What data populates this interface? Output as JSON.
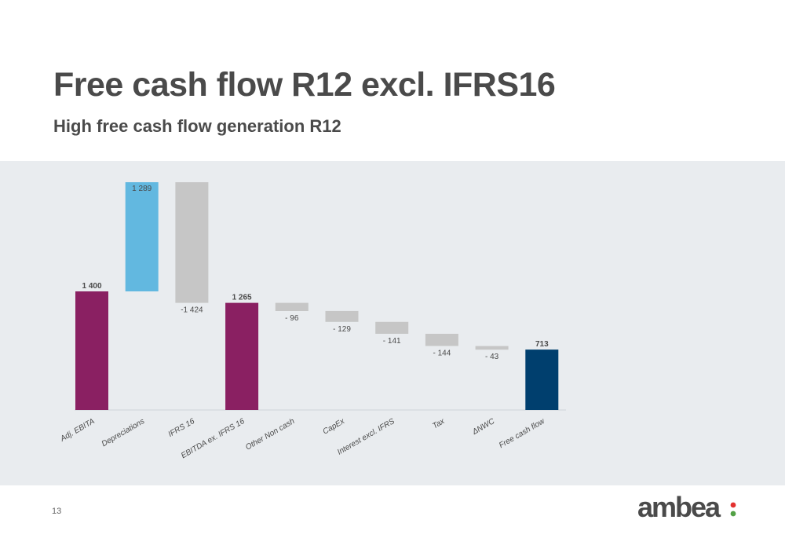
{
  "page": {
    "title": "Free cash flow R12 excl. IFRS16",
    "subtitle": "High free cash flow generation R12",
    "page_number": "13",
    "logo_text": "ambea"
  },
  "colors": {
    "total": "#8a2062",
    "increase": "#62b8e0",
    "decrease": "#c6c6c6",
    "final": "#003f6e",
    "text": "#4a4a4a",
    "logo": "#4a4a4a",
    "logo_dot_top": "#e3312f",
    "logo_dot_bottom": "#53a146"
  },
  "chart_data": {
    "type": "waterfall",
    "categories": [
      "Adj. EBITA",
      "Depreciations",
      "IFRS 16",
      "EBITDA ex. IFRS 16",
      "Other Non cash",
      "CapEx",
      "Interest excl. IFRS",
      "Tax",
      "ΔNWC",
      "Free cash flow"
    ],
    "values": [
      1400,
      1289,
      -1424,
      1265,
      -96,
      -129,
      -141,
      -144,
      -43,
      713
    ],
    "kinds": [
      "total",
      "increase",
      "decrease",
      "total",
      "decrease",
      "decrease",
      "decrease",
      "decrease",
      "decrease",
      "final"
    ],
    "data_labels": [
      "1 400",
      "1 289",
      "-1 424",
      "1 265",
      "- 96",
      "- 129",
      "- 141",
      "- 144",
      "- 43",
      "713"
    ],
    "ylim": [
      0,
      2689
    ],
    "grid": false,
    "legend": "none"
  }
}
